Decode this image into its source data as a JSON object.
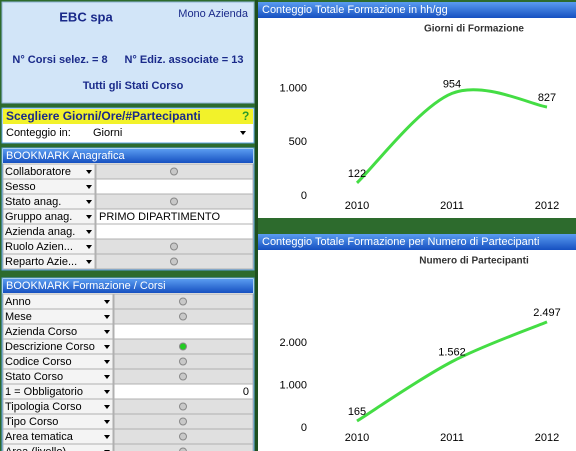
{
  "company": {
    "name": "EBC spa",
    "mode": "Mono Azienda",
    "courses": "N° Corsi selez. = 8",
    "editions": "N° Ediz. associate = 13",
    "status": "Tutti gli Stati Corso"
  },
  "selector": {
    "title": "Scegliere Giorni/Ore/#Partecipanti",
    "help": "?",
    "label": "Conteggio in:",
    "value": "Giorni"
  },
  "bookmarks": [
    {
      "title": "BOOKMARK Anagrafica",
      "rows": [
        {
          "label": "Collaboratore",
          "dot": "#c8c8c8"
        },
        {
          "label": "Sesso"
        },
        {
          "label": "Stato anag.",
          "dot": "#c8c8c8"
        },
        {
          "label": "Gruppo anag.",
          "value": "PRIMO DIPARTIMENTO"
        },
        {
          "label": "Azienda anag."
        },
        {
          "label": "Ruolo Azien...",
          "dot": "#c8c8c8"
        },
        {
          "label": "Reparto Azie...",
          "dot": "#c8c8c8"
        }
      ]
    },
    {
      "title": "BOOKMARK Formazione / Corsi",
      "rows": [
        {
          "label": "Anno",
          "dot": "#c8c8c8"
        },
        {
          "label": "Mese",
          "dot": "#c8c8c8"
        },
        {
          "label": "Azienda Corso"
        },
        {
          "label": "Descrizione Corso",
          "dot": "#22cc22"
        },
        {
          "label": "Codice Corso",
          "dot": "#c8c8c8"
        },
        {
          "label": "Stato Corso",
          "dot": "#c8c8c8"
        },
        {
          "label": "1 = Obbligatorio",
          "number": 0
        },
        {
          "label": "Tipologia Corso",
          "dot": "#c8c8c8"
        },
        {
          "label": "Tipo Corso",
          "dot": "#c8c8c8"
        },
        {
          "label": "Area tematica",
          "dot": "#c8c8c8"
        },
        {
          "label": "Area (livello)",
          "dot": "#c8c8c8"
        }
      ]
    }
  ],
  "chart_data": [
    {
      "type": "line",
      "panel_title": "Conteggio Totale Formazione in hh/gg",
      "title": "Giorni di Formazione",
      "categories": [
        "2010",
        "2011",
        "2012"
      ],
      "values": [
        122,
        954,
        827
      ],
      "color": "#44dd44",
      "ylim": [
        0,
        1450
      ],
      "yticks": [
        0,
        500,
        {
          "value": 1000,
          "label": "1.000"
        }
      ]
    },
    {
      "type": "line",
      "panel_title": "Conteggio Totale Formazione per Numero di Partecipanti",
      "title": "Numero di Partecipanti",
      "categories": [
        "2010",
        "2011",
        "2012"
      ],
      "values": [
        165,
        1562,
        2497
      ],
      "value_labels": [
        "165",
        "1.562",
        "2.497"
      ],
      "color": "#44dd44",
      "ylim": [
        0,
        3600
      ],
      "yticks": [
        0,
        {
          "value": 1000,
          "label": "1.000"
        },
        {
          "value": 2000,
          "label": "2.000"
        }
      ]
    }
  ]
}
